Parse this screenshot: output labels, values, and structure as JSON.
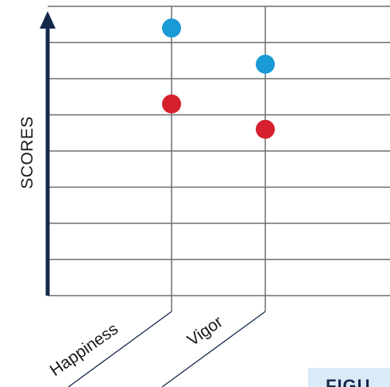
{
  "chart_data": {
    "type": "scatter",
    "categories": [
      "Happiness",
      "Vigor"
    ],
    "series": [
      {
        "color": "#1a9ad6",
        "values": [
          7.4,
          6.4
        ]
      },
      {
        "color": "#d6202f",
        "values": [
          5.3,
          4.6
        ]
      }
    ],
    "ylabel": "SCORES",
    "xlabel": "",
    "title": "",
    "ylim": [
      0,
      8
    ],
    "grid": true,
    "legend": "none",
    "colors": {
      "axis": "#14284b",
      "grid": "#6e6e6e"
    }
  },
  "figure_caption_fragment": "FIGU"
}
